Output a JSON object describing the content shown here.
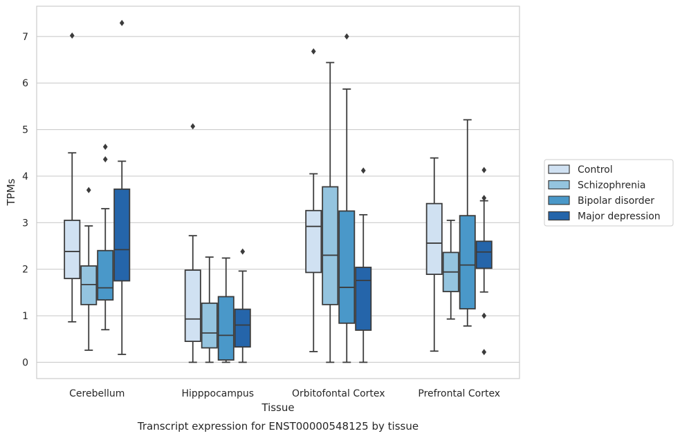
{
  "caption": "Transcript expression for ENST00000548125 by tissue",
  "chart_data": {
    "type": "boxplot",
    "xlabel": "Tissue",
    "ylabel": "TPMs",
    "ylim": [
      -0.35,
      7.65
    ],
    "yticks": [
      0,
      1,
      2,
      3,
      4,
      5,
      6,
      7
    ],
    "grid": "horizontal",
    "legend_placement": "right",
    "categories": [
      "Cerebellum",
      "Hipppocampus",
      "Orbitofontal Cortex",
      "Prefrontal Cortex"
    ],
    "series": [
      {
        "name": "Control",
        "color": "#d0e1f2",
        "boxes": [
          {
            "whisker_low": 0.87,
            "q1": 1.8,
            "median": 2.38,
            "q3": 3.05,
            "whisker_high": 4.5,
            "outliers": [
              7.02
            ]
          },
          {
            "whisker_low": 0.0,
            "q1": 0.45,
            "median": 0.93,
            "q3": 1.98,
            "whisker_high": 2.72,
            "outliers": [
              5.07
            ]
          },
          {
            "whisker_low": 0.23,
            "q1": 1.93,
            "median": 2.92,
            "q3": 3.26,
            "whisker_high": 4.05,
            "outliers": [
              6.68
            ]
          },
          {
            "whisker_low": 0.24,
            "q1": 1.89,
            "median": 2.56,
            "q3": 3.41,
            "whisker_high": 4.39,
            "outliers": []
          }
        ]
      },
      {
        "name": "Schizophrenia",
        "color": "#94c4df",
        "boxes": [
          {
            "whisker_low": 0.26,
            "q1": 1.24,
            "median": 1.67,
            "q3": 2.07,
            "whisker_high": 2.93,
            "outliers": [
              3.7
            ]
          },
          {
            "whisker_low": 0.0,
            "q1": 0.31,
            "median": 0.63,
            "q3": 1.27,
            "whisker_high": 2.26,
            "outliers": []
          },
          {
            "whisker_low": 0.0,
            "q1": 1.24,
            "median": 2.3,
            "q3": 3.77,
            "whisker_high": 6.44,
            "outliers": []
          },
          {
            "whisker_low": 0.93,
            "q1": 1.52,
            "median": 1.94,
            "q3": 2.36,
            "whisker_high": 3.05,
            "outliers": []
          }
        ]
      },
      {
        "name": "Bipolar disorder",
        "color": "#4a98c9",
        "boxes": [
          {
            "whisker_low": 0.7,
            "q1": 1.34,
            "median": 1.6,
            "q3": 2.4,
            "whisker_high": 3.3,
            "outliers": [
              4.36,
              4.63
            ]
          },
          {
            "whisker_low": 0.0,
            "q1": 0.05,
            "median": 0.58,
            "q3": 1.41,
            "whisker_high": 2.24,
            "outliers": []
          },
          {
            "whisker_low": 0.0,
            "q1": 0.84,
            "median": 1.61,
            "q3": 3.25,
            "whisker_high": 5.87,
            "outliers": [
              7.0
            ]
          },
          {
            "whisker_low": 0.78,
            "q1": 1.15,
            "median": 2.09,
            "q3": 3.15,
            "whisker_high": 5.21,
            "outliers": []
          }
        ]
      },
      {
        "name": "Major depression",
        "color": "#2565aa",
        "boxes": [
          {
            "whisker_low": 0.17,
            "q1": 1.75,
            "median": 2.42,
            "q3": 3.72,
            "whisker_high": 4.32,
            "outliers": [
              7.29
            ]
          },
          {
            "whisker_low": 0.0,
            "q1": 0.33,
            "median": 0.8,
            "q3": 1.14,
            "whisker_high": 1.96,
            "outliers": [
              2.38
            ]
          },
          {
            "whisker_low": 0.0,
            "q1": 0.69,
            "median": 1.76,
            "q3": 2.04,
            "whisker_high": 3.17,
            "outliers": [
              4.12
            ]
          },
          {
            "whisker_low": 1.51,
            "q1": 2.02,
            "median": 2.37,
            "q3": 2.6,
            "whisker_high": 3.47,
            "outliers": [
              0.22,
              1.0,
              3.53,
              4.13
            ]
          }
        ]
      }
    ]
  }
}
